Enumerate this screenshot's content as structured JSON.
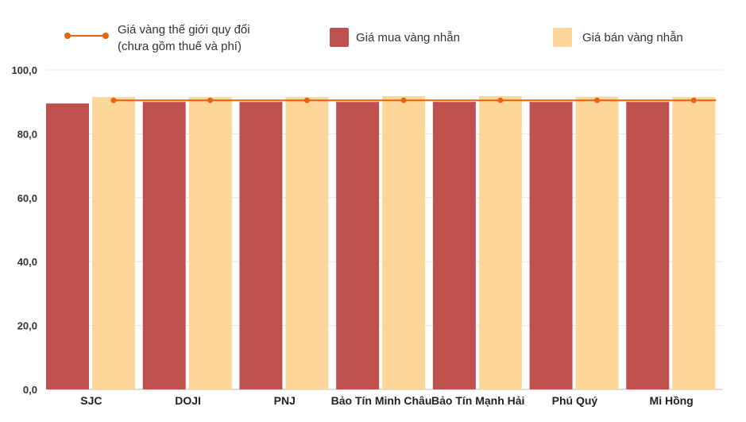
{
  "chart_data": {
    "type": "bar",
    "title": "",
    "xlabel": "",
    "ylabel": "",
    "ylim": [
      0,
      100
    ],
    "yticks": [
      "0,0",
      "20,0",
      "40,0",
      "60,0",
      "80,0",
      "100,0"
    ],
    "grid": true,
    "legend_position": "top",
    "categories": [
      "SJC",
      "DOJI",
      "PNJ",
      "Bảo Tín Minh Châu",
      "Bảo Tín Mạnh Hải",
      "Phú Quý",
      "Mi Hồng"
    ],
    "series": [
      {
        "name": "Giá mua vàng nhẫn",
        "type": "bar",
        "color": "#c0504d",
        "values": [
          89.5,
          90.0,
          90.0,
          90.0,
          90.0,
          90.0,
          90.0
        ]
      },
      {
        "name": "Giá bán vàng nhẫn",
        "type": "bar",
        "color": "#fdd69a",
        "values": [
          91.5,
          91.5,
          91.5,
          91.8,
          91.8,
          91.6,
          91.5
        ]
      },
      {
        "name_lines": [
          "Giá vàng thế giới quy đổi",
          "(chưa gồm thuế và phí)"
        ],
        "type": "line",
        "color": "#e8620f",
        "values": [
          90.5,
          90.5,
          90.5,
          90.5,
          90.5,
          90.5,
          90.5
        ]
      }
    ]
  }
}
